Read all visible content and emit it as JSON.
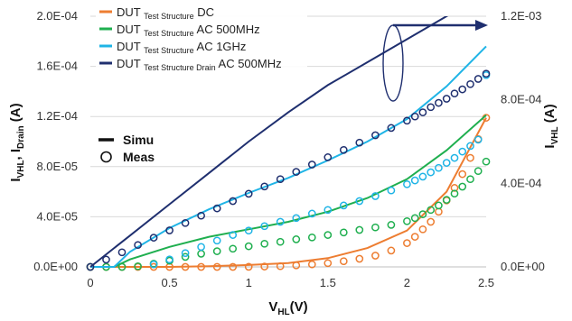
{
  "chart_data": {
    "type": "line",
    "xlabel": {
      "main": "V",
      "sub": "HL",
      "suffix": "(V)"
    },
    "ylabel_left": {
      "parts": [
        {
          "text": "I",
          "sub": "VHL"
        },
        {
          "text": ", I",
          "sub": "Drain"
        },
        {
          "text": " (A)",
          "sub": ""
        }
      ]
    },
    "ylabel_right": {
      "parts": [
        {
          "text": "I",
          "sub": "VHL"
        },
        {
          "text": " (A)",
          "sub": ""
        }
      ]
    },
    "xlim": [
      0,
      2.5
    ],
    "ylim_left": [
      0,
      0.0002
    ],
    "ylim_right": [
      0,
      0.0012
    ],
    "x_ticks": [
      "0",
      "0.5",
      "1",
      "1.5",
      "2",
      "2.5"
    ],
    "y_left_ticks": [
      "0.0E+00",
      "4.0E-05",
      "8.0E-05",
      "1.2E-04",
      "1.6E-04",
      "2.0E-04"
    ],
    "y_right_ticks": [
      "0.0E+00",
      "4.0E-04",
      "8.0E-04",
      "1.2E-03"
    ],
    "grid": "horizontal",
    "legend_position": "top-left",
    "legend": [
      {
        "pre": "DUT ",
        "sub": "Test Structure",
        "post": " DC",
        "color": "#ed7d31"
      },
      {
        "pre": "DUT ",
        "sub": "Test Structure",
        "post": " AC 500MHz",
        "color": "#1faf4f"
      },
      {
        "pre": "DUT ",
        "sub": "Test Structure",
        "post": " AC 1GHz",
        "color": "#1fb4e6"
      },
      {
        "pre": "DUT ",
        "sub": "Test Structure Drain",
        "post": " AC 500MHz",
        "color": "#1f2f6f"
      }
    ],
    "marker_legend": [
      {
        "label": "Simu",
        "kind": "line"
      },
      {
        "label": "Meas",
        "kind": "circle"
      }
    ],
    "annotation": {
      "kind": "ellipse-arrow",
      "points_to_axis": "right"
    },
    "series": [
      {
        "axis": "left",
        "color": "#ed7d31",
        "kind": "simu",
        "x": [
          0,
          0.25,
          0.5,
          0.75,
          1.0,
          1.25,
          1.5,
          1.75,
          2.0,
          2.25,
          2.5
        ],
        "y": [
          0,
          0,
          0,
          5e-07,
          1.5e-06,
          3e-06,
          7e-06,
          1.5e-05,
          2.9e-05,
          6e-05,
          0.000119
        ]
      },
      {
        "axis": "left",
        "color": "#ed7d31",
        "kind": "meas",
        "x": [
          0,
          0.1,
          0.2,
          0.3,
          0.4,
          0.5,
          0.6,
          0.7,
          0.8,
          0.9,
          1.0,
          1.1,
          1.2,
          1.3,
          1.4,
          1.5,
          1.6,
          1.7,
          1.8,
          1.9,
          2.0,
          2.05,
          2.1,
          2.15,
          2.2,
          2.25,
          2.3,
          2.35,
          2.4,
          2.45,
          2.5
        ],
        "y": [
          0,
          0,
          0,
          0,
          0,
          0,
          0,
          0,
          0,
          0,
          1e-07,
          3e-07,
          6e-07,
          1.2e-06,
          2e-06,
          3e-06,
          4.5e-06,
          6.5e-06,
          9e-06,
          1.3e-05,
          1.9e-05,
          2.4e-05,
          3e-05,
          3.6e-05,
          4.4e-05,
          5.3e-05,
          6.3e-05,
          7.4e-05,
          8.7e-05,
          0.000102,
          0.000119
        ]
      },
      {
        "axis": "left",
        "color": "#1faf4f",
        "kind": "simu",
        "x": [
          0,
          0.15,
          0.25,
          0.5,
          0.75,
          1.0,
          1.25,
          1.5,
          1.75,
          2.0,
          2.25,
          2.5
        ],
        "y": [
          0,
          0,
          6e-06,
          1.6e-05,
          2.4e-05,
          3e-05,
          3.6e-05,
          4.4e-05,
          5.5e-05,
          7e-05,
          9.3e-05,
          0.000121
        ]
      },
      {
        "axis": "left",
        "color": "#1faf4f",
        "kind": "meas",
        "x": [
          0,
          0.1,
          0.2,
          0.3,
          0.4,
          0.5,
          0.6,
          0.7,
          0.8,
          0.9,
          1.0,
          1.1,
          1.2,
          1.3,
          1.4,
          1.5,
          1.6,
          1.7,
          1.8,
          1.9,
          2.0,
          2.05,
          2.1,
          2.15,
          2.2,
          2.25,
          2.3,
          2.35,
          2.4,
          2.45,
          2.5
        ],
        "y": [
          0,
          0,
          0,
          5e-07,
          2.5e-06,
          5e-06,
          8e-06,
          1.05e-05,
          1.25e-05,
          1.45e-05,
          1.65e-05,
          1.85e-05,
          2e-05,
          2.2e-05,
          2.35e-05,
          2.55e-05,
          2.75e-05,
          2.95e-05,
          3.15e-05,
          3.35e-05,
          3.65e-05,
          3.9e-05,
          4.2e-05,
          4.55e-05,
          4.9e-05,
          5.35e-05,
          5.85e-05,
          6.4e-05,
          7e-05,
          7.65e-05,
          8.4e-05
        ]
      },
      {
        "axis": "left",
        "color": "#1fb4e6",
        "kind": "simu",
        "x": [
          0,
          0.15,
          0.25,
          0.5,
          0.75,
          1.0,
          1.25,
          1.5,
          1.75,
          2.0,
          2.25,
          2.5
        ],
        "y": [
          0,
          0,
          1.2e-05,
          3.1e-05,
          4.6e-05,
          5.9e-05,
          7.1e-05,
          8.5e-05,
          0.0001,
          0.000118,
          0.000144,
          0.000176
        ]
      },
      {
        "axis": "left",
        "color": "#1fb4e6",
        "kind": "meas",
        "x": [
          0.4,
          0.5,
          0.6,
          0.7,
          0.8,
          0.9,
          1.0,
          1.1,
          1.2,
          1.3,
          1.4,
          1.5,
          1.6,
          1.7,
          1.8,
          1.9,
          2.0,
          2.05,
          2.1,
          2.15,
          2.2,
          2.25,
          2.3,
          2.35,
          2.4,
          2.45,
          2.5
        ],
        "y": [
          2e-06,
          6e-06,
          1.1e-05,
          1.6e-05,
          2.1e-05,
          2.55e-05,
          2.9e-05,
          3.25e-05,
          3.6e-05,
          3.9e-05,
          4.25e-05,
          4.55e-05,
          4.9e-05,
          5.25e-05,
          5.65e-05,
          6.1e-05,
          6.6e-05,
          6.9e-05,
          7.2e-05,
          7.55e-05,
          7.9e-05,
          8.3e-05,
          8.7e-05,
          9.2e-05,
          9.65e-05,
          0.0001015,
          0.000153
        ]
      },
      {
        "axis": "right",
        "color": "#1f2f6f",
        "kind": "simu",
        "x": [
          0,
          0.15,
          0.25,
          0.5,
          0.75,
          1.0,
          1.25,
          1.5,
          1.75,
          2.0,
          2.25,
          2.5
        ],
        "y": [
          0,
          9e-05,
          0.00015,
          0.0003,
          0.00045,
          0.0006,
          0.00074,
          0.00087,
          0.00098,
          0.00109,
          0.0012,
          0.00131
        ]
      },
      {
        "axis": "right",
        "color": "#1f2f6f",
        "kind": "meas",
        "x": [
          0,
          0.1,
          0.2,
          0.3,
          0.4,
          0.5,
          0.6,
          0.7,
          0.8,
          0.9,
          1.0,
          1.1,
          1.2,
          1.3,
          1.4,
          1.5,
          1.6,
          1.7,
          1.8,
          1.9,
          2.0,
          2.05,
          2.1,
          2.15,
          2.2,
          2.25,
          2.3,
          2.35,
          2.4,
          2.45,
          2.5
        ],
        "y": [
          0,
          3.5e-05,
          7e-05,
          0.000105,
          0.00014,
          0.000175,
          0.00021,
          0.000245,
          0.00028,
          0.000315,
          0.00035,
          0.000385,
          0.00042,
          0.000455,
          0.00049,
          0.000525,
          0.00056,
          0.000595,
          0.00063,
          0.000665,
          0.0007,
          0.00072,
          0.00074,
          0.000765,
          0.000785,
          0.000805,
          0.00083,
          0.00085,
          0.000875,
          0.0009,
          0.000925
        ]
      }
    ]
  }
}
